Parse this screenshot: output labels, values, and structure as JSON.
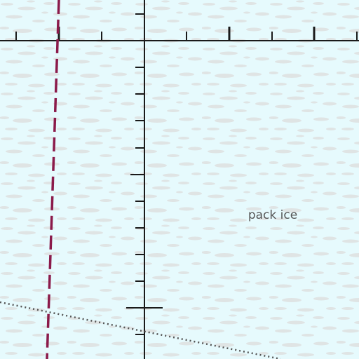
{
  "map": {
    "background_color": "#e6fafd",
    "ice_texture_color": "#dcdcdc",
    "grid_line_color": "#1a1a1a",
    "labels": {
      "pack_ice": "pack ice"
    },
    "boundary_dashed": {
      "color": "#8b1a4a",
      "style": "dashed"
    },
    "boundary_dotted": {
      "color": "#555555",
      "style": "dotted"
    }
  }
}
